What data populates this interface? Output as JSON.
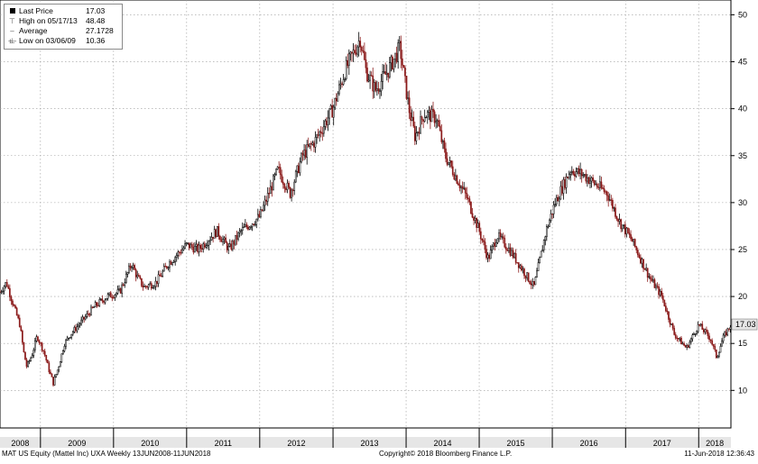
{
  "legend": {
    "last_price_label": "Last Price",
    "last_price_value": "17.03",
    "high_label": "High on 05/17/13",
    "high_value": "48.48",
    "average_label": "Average",
    "average_value": "27.1728",
    "low_label": "Low on 03/06/09",
    "low_value": "10.36"
  },
  "last_price_tag": "17.03",
  "footer": {
    "security": "MAT US Equity (Mattel Inc) UXA  Weekly 13JUN2008-11JUN2018",
    "copyright": "Copyright© 2018 Bloomberg Finance L.P.",
    "timestamp": "11-Jun-2018 12:36:43"
  },
  "colors": {
    "up_candle": "#000000",
    "down_candle": "#8b1a1a",
    "grid": "#9a9a9a",
    "axis_strip": "#e6e6e6",
    "last_tag": "#e6e6e6"
  },
  "chart_data": {
    "type": "candlestick",
    "frequency": "Weekly",
    "x_start": "2008-06-13",
    "x_end": "2018-06-11",
    "ylim": [
      6,
      51
    ],
    "yticks": [
      10,
      15,
      20,
      25,
      30,
      35,
      40,
      45,
      50
    ],
    "xticks": [
      "2008",
      "2009",
      "2010",
      "2011",
      "2012",
      "2013",
      "2014",
      "2015",
      "2016",
      "2017",
      "2018"
    ],
    "grid": true,
    "y_axis_position": "right",
    "price_path": [
      [
        "2008-06-13",
        20.5
      ],
      [
        "2008-07-15",
        21.5
      ],
      [
        "2008-08-20",
        19.0
      ],
      [
        "2008-09-20",
        17.0
      ],
      [
        "2008-10-10",
        14.0
      ],
      [
        "2008-10-25",
        12.5
      ],
      [
        "2008-11-20",
        13.8
      ],
      [
        "2008-12-15",
        15.8
      ],
      [
        "2009-01-20",
        14.0
      ],
      [
        "2009-02-15",
        12.0
      ],
      [
        "2009-03-06",
        10.8
      ],
      [
        "2009-04-01",
        12.5
      ],
      [
        "2009-05-01",
        15.0
      ],
      [
        "2009-06-01",
        16.0
      ],
      [
        "2009-08-01",
        17.5
      ],
      [
        "2009-10-01",
        19.0
      ],
      [
        "2009-12-01",
        20.0
      ],
      [
        "2010-02-01",
        20.5
      ],
      [
        "2010-04-01",
        23.5
      ],
      [
        "2010-05-01",
        22.0
      ],
      [
        "2010-06-01",
        21.0
      ],
      [
        "2010-08-01",
        21.5
      ],
      [
        "2010-10-01",
        23.5
      ],
      [
        "2011-01-01",
        25.5
      ],
      [
        "2011-03-01",
        25.0
      ],
      [
        "2011-06-01",
        27.0
      ],
      [
        "2011-08-01",
        25.0
      ],
      [
        "2011-10-01",
        27.0
      ],
      [
        "2012-01-01",
        28.5
      ],
      [
        "2012-04-01",
        33.5
      ],
      [
        "2012-06-01",
        31.0
      ],
      [
        "2012-08-01",
        35.0
      ],
      [
        "2012-10-01",
        36.5
      ],
      [
        "2013-01-01",
        40.0
      ],
      [
        "2013-03-01",
        44.0
      ],
      [
        "2013-05-17",
        47.5
      ],
      [
        "2013-06-15",
        44.0
      ],
      [
        "2013-08-01",
        42.0
      ],
      [
        "2013-10-01",
        44.0
      ],
      [
        "2013-12-01",
        46.5
      ],
      [
        "2014-01-15",
        40.0
      ],
      [
        "2014-02-15",
        37.0
      ],
      [
        "2014-04-01",
        39.5
      ],
      [
        "2014-06-01",
        39.0
      ],
      [
        "2014-07-15",
        35.0
      ],
      [
        "2014-09-01",
        33.0
      ],
      [
        "2014-11-01",
        30.5
      ],
      [
        "2015-01-01",
        27.0
      ],
      [
        "2015-02-15",
        24.0
      ],
      [
        "2015-04-01",
        26.5
      ],
      [
        "2015-06-01",
        25.0
      ],
      [
        "2015-08-01",
        23.0
      ],
      [
        "2015-10-01",
        21.0
      ],
      [
        "2015-12-01",
        27.0
      ],
      [
        "2016-01-15",
        30.0
      ],
      [
        "2016-04-01",
        33.5
      ],
      [
        "2016-06-01",
        33.0
      ],
      [
        "2016-08-01",
        32.0
      ],
      [
        "2016-10-01",
        31.0
      ],
      [
        "2016-12-01",
        28.0
      ],
      [
        "2017-02-01",
        26.0
      ],
      [
        "2017-05-01",
        22.0
      ],
      [
        "2017-07-01",
        20.0
      ],
      [
        "2017-09-01",
        16.0
      ],
      [
        "2017-11-01",
        14.5
      ],
      [
        "2018-01-01",
        17.0
      ],
      [
        "2018-03-01",
        15.5
      ],
      [
        "2018-04-01",
        13.5
      ],
      [
        "2018-05-01",
        15.5
      ],
      [
        "2018-06-11",
        17.03
      ]
    ],
    "last_price": 17.03,
    "high": 48.48,
    "high_date": "2013-05-17",
    "average": 27.1728,
    "low": 10.36,
    "low_date": "2009-03-06"
  }
}
